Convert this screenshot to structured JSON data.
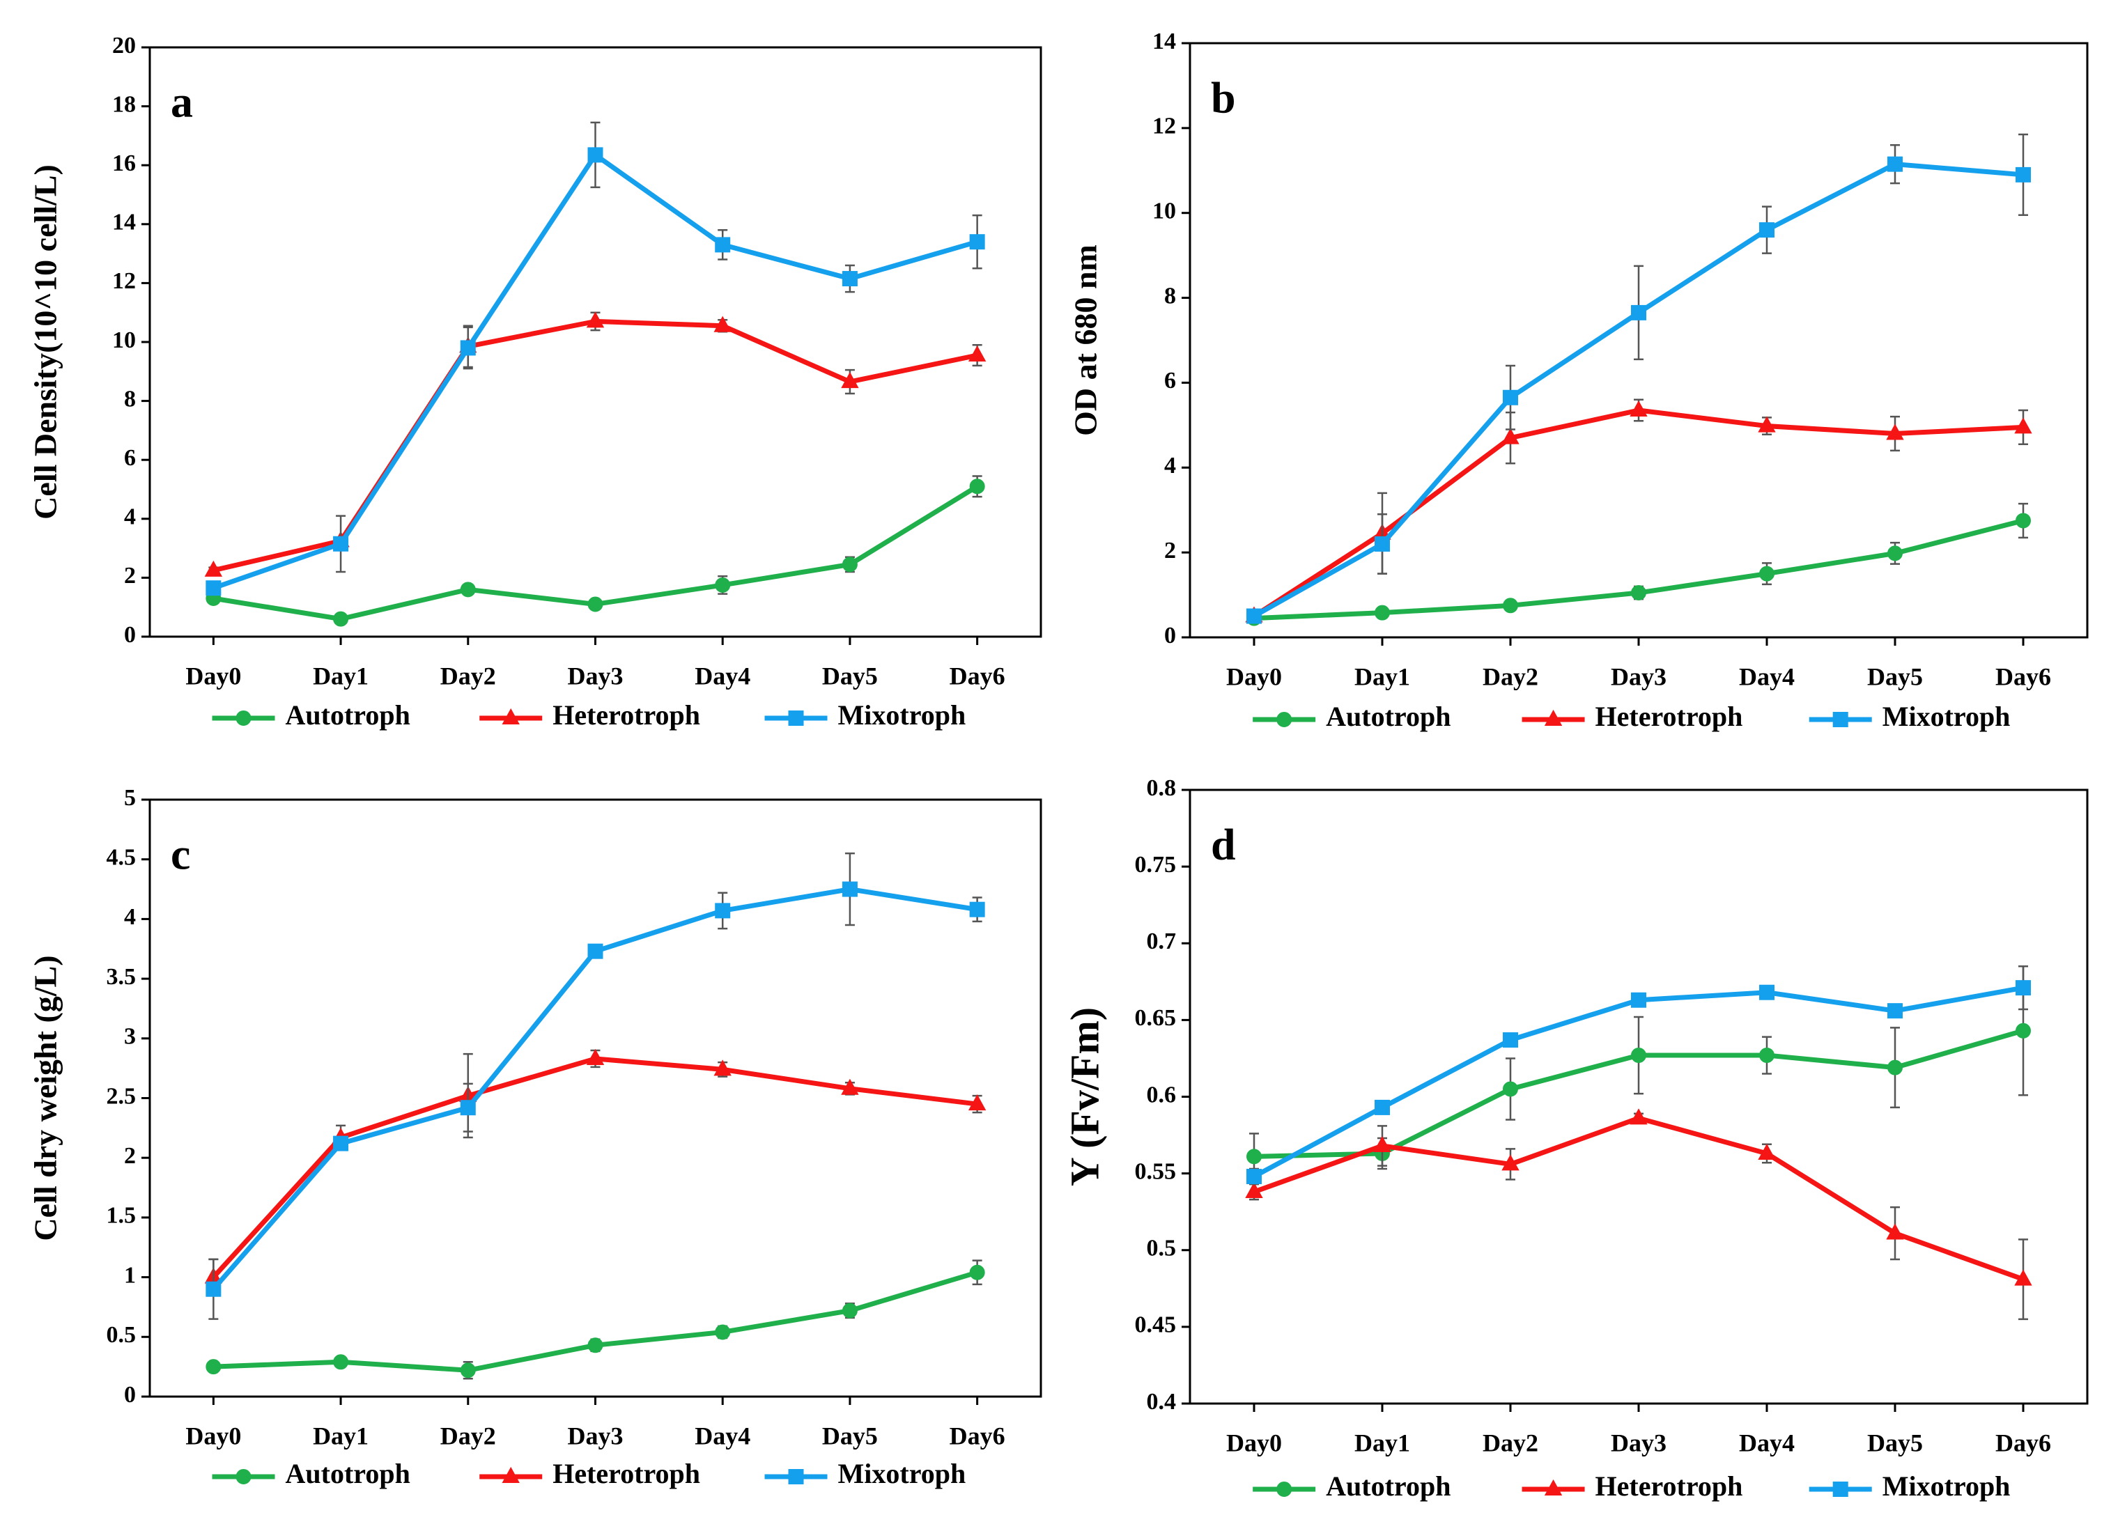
{
  "chart_data": [
    {
      "type": "line",
      "panel_label": "a",
      "y_label": "Cell Density(10^10 cell/L)",
      "categories": [
        "Day0",
        "Day1",
        "Day2",
        "Day3",
        "Day4",
        "Day5",
        "Day6"
      ],
      "ylim": [
        0,
        20
      ],
      "yticks": [
        0,
        2,
        4,
        6,
        8,
        10,
        12,
        14,
        16,
        18,
        20
      ],
      "series": [
        {
          "name": "Autotroph",
          "color": "#1fb04c",
          "marker": "circle",
          "values": [
            1.3,
            0.6,
            1.6,
            1.1,
            1.75,
            2.45,
            5.1
          ],
          "errors": [
            0.1,
            0.05,
            0.1,
            0.1,
            0.3,
            0.25,
            0.35
          ]
        },
        {
          "name": "Heterotroph",
          "color": "#f51515",
          "marker": "triangle",
          "values": [
            2.25,
            3.25,
            9.85,
            10.7,
            10.55,
            8.65,
            9.55
          ],
          "errors": [
            0.1,
            0.1,
            0.7,
            0.3,
            0.2,
            0.4,
            0.35
          ]
        },
        {
          "name": "Mixotroph",
          "color": "#15a0ee",
          "marker": "square",
          "values": [
            1.65,
            3.15,
            9.8,
            16.35,
            13.3,
            12.15,
            13.4
          ],
          "errors": [
            0.1,
            0.95,
            0.7,
            1.1,
            0.5,
            0.45,
            0.9
          ]
        }
      ]
    },
    {
      "type": "line",
      "panel_label": "b",
      "y_label": "OD at 680 nm",
      "categories": [
        "Day0",
        "Day1",
        "Day2",
        "Day3",
        "Day4",
        "Day5",
        "Day6"
      ],
      "ylim": [
        0,
        14
      ],
      "yticks": [
        0,
        2,
        4,
        6,
        8,
        10,
        12,
        14
      ],
      "series": [
        {
          "name": "Autotroph",
          "color": "#1fb04c",
          "marker": "circle",
          "values": [
            0.45,
            0.58,
            0.75,
            1.05,
            1.5,
            1.98,
            2.75
          ],
          "errors": [
            0.05,
            0.1,
            0.1,
            0.15,
            0.25,
            0.25,
            0.4
          ]
        },
        {
          "name": "Heterotroph",
          "color": "#f51515",
          "marker": "triangle",
          "values": [
            0.5,
            2.45,
            4.7,
            5.35,
            4.98,
            4.8,
            4.95
          ],
          "errors": [
            0.05,
            0.95,
            0.6,
            0.25,
            0.2,
            0.4,
            0.4
          ]
        },
        {
          "name": "Mixotroph",
          "color": "#15a0ee",
          "marker": "square",
          "values": [
            0.5,
            2.2,
            5.65,
            7.65,
            9.6,
            11.15,
            10.9
          ],
          "errors": [
            0.05,
            0.7,
            0.75,
            1.1,
            0.55,
            0.45,
            0.95
          ]
        }
      ]
    },
    {
      "type": "line",
      "panel_label": "c",
      "y_label": "Cell dry weight (g/L)",
      "categories": [
        "Day0",
        "Day1",
        "Day2",
        "Day3",
        "Day4",
        "Day5",
        "Day6"
      ],
      "ylim": [
        0,
        5
      ],
      "yticks": [
        0,
        0.5,
        1,
        1.5,
        2,
        2.5,
        3,
        3.5,
        4,
        4.5,
        5
      ],
      "series": [
        {
          "name": "Autotroph",
          "color": "#1fb04c",
          "marker": "circle",
          "values": [
            0.25,
            0.29,
            0.22,
            0.43,
            0.54,
            0.72,
            1.04
          ],
          "errors": [
            0.03,
            0.03,
            0.07,
            0.05,
            0.05,
            0.06,
            0.1
          ]
        },
        {
          "name": "Heterotroph",
          "color": "#f51515",
          "marker": "triangle",
          "values": [
            1.0,
            2.17,
            2.52,
            2.83,
            2.74,
            2.58,
            2.45
          ],
          "errors": [
            0.15,
            0.1,
            0.35,
            0.07,
            0.06,
            0.05,
            0.07
          ]
        },
        {
          "name": "Mixotroph",
          "color": "#15a0ee",
          "marker": "square",
          "values": [
            0.9,
            2.12,
            2.42,
            3.73,
            4.07,
            4.25,
            4.08
          ],
          "errors": [
            0.25,
            0.05,
            0.2,
            0.03,
            0.15,
            0.3,
            0.1
          ]
        }
      ]
    },
    {
      "type": "line",
      "panel_label": "d",
      "y_label": "Y (Fv/Fm)",
      "categories": [
        "Day0",
        "Day1",
        "Day2",
        "Day3",
        "Day4",
        "Day5",
        "Day6"
      ],
      "ylim": [
        0.4,
        0.8
      ],
      "yticks": [
        0.4,
        0.45,
        0.5,
        0.55,
        0.6,
        0.65,
        0.7,
        0.75,
        0.8
      ],
      "series": [
        {
          "name": "Autotroph",
          "color": "#1fb04c",
          "marker": "circle",
          "values": [
            0.561,
            0.563,
            0.605,
            0.627,
            0.627,
            0.619,
            0.643
          ],
          "errors": [
            0.015,
            0.01,
            0.02,
            0.025,
            0.012,
            0.026,
            0.042
          ]
        },
        {
          "name": "Heterotroph",
          "color": "#f51515",
          "marker": "triangle",
          "values": [
            0.538,
            0.568,
            0.556,
            0.586,
            0.563,
            0.511,
            0.481
          ],
          "errors": [
            0.005,
            0.013,
            0.01,
            0.003,
            0.006,
            0.017,
            0.026
          ]
        },
        {
          "name": "Mixotroph",
          "color": "#15a0ee",
          "marker": "square",
          "values": [
            0.548,
            0.593,
            0.637,
            0.663,
            0.668,
            0.656,
            0.671
          ],
          "errors": [
            0.005,
            0.003,
            0.003,
            0.003,
            0.004,
            0.003,
            0.014
          ]
        }
      ]
    }
  ]
}
